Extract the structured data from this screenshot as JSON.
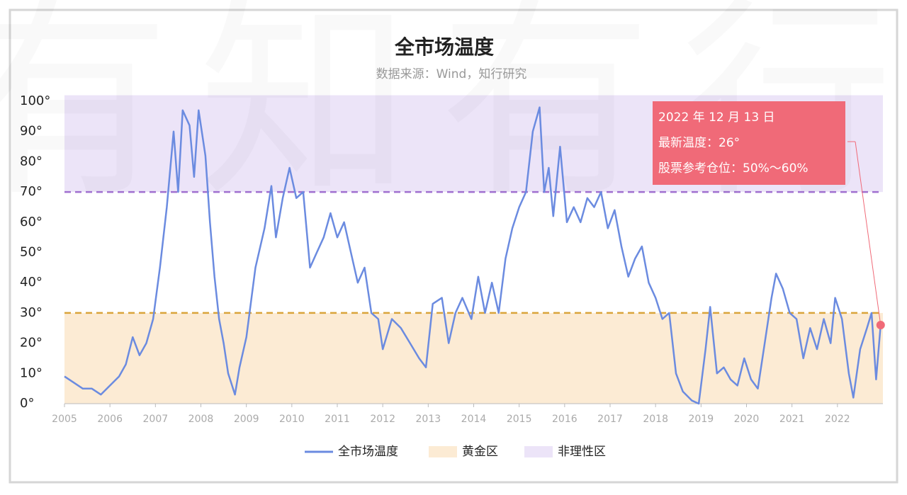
{
  "chart_data": {
    "type": "line",
    "title": "全市场温度",
    "subtitle": "数据来源：Wind，知行研究",
    "watermark": "有知有行",
    "x": [
      2005.0,
      2005.2,
      2005.4,
      2005.6,
      2005.8,
      2006.0,
      2006.2,
      2006.35,
      2006.5,
      2006.65,
      2006.8,
      2006.95,
      2007.1,
      2007.25,
      2007.4,
      2007.5,
      2007.6,
      2007.75,
      2007.85,
      2007.95,
      2008.1,
      2008.2,
      2008.3,
      2008.4,
      2008.5,
      2008.6,
      2008.75,
      2008.85,
      2009.0,
      2009.2,
      2009.4,
      2009.55,
      2009.65,
      2009.8,
      2009.95,
      2010.1,
      2010.25,
      2010.4,
      2010.55,
      2010.7,
      2010.85,
      2011.0,
      2011.15,
      2011.3,
      2011.45,
      2011.6,
      2011.75,
      2011.9,
      2012.0,
      2012.2,
      2012.4,
      2012.6,
      2012.8,
      2012.95,
      2013.1,
      2013.3,
      2013.45,
      2013.6,
      2013.75,
      2013.95,
      2014.1,
      2014.25,
      2014.4,
      2014.55,
      2014.7,
      2014.85,
      2015.0,
      2015.15,
      2015.3,
      2015.45,
      2015.55,
      2015.65,
      2015.75,
      2015.9,
      2016.05,
      2016.2,
      2016.35,
      2016.5,
      2016.65,
      2016.8,
      2016.95,
      2017.1,
      2017.25,
      2017.4,
      2017.55,
      2017.7,
      2017.85,
      2018.0,
      2018.15,
      2018.3,
      2018.45,
      2018.6,
      2018.8,
      2018.95,
      2019.1,
      2019.2,
      2019.35,
      2019.5,
      2019.65,
      2019.8,
      2019.95,
      2020.1,
      2020.25,
      2020.4,
      2020.55,
      2020.65,
      2020.8,
      2020.95,
      2021.1,
      2021.25,
      2021.4,
      2021.55,
      2021.7,
      2021.85,
      2021.95,
      2022.1,
      2022.25,
      2022.35,
      2022.5,
      2022.65,
      2022.75,
      2022.85,
      2022.95
    ],
    "series": [
      {
        "name": "全市场温度",
        "color": "#6b8be0",
        "values": [
          9,
          7,
          5,
          5,
          3,
          6,
          9,
          13,
          22,
          16,
          20,
          28,
          45,
          65,
          90,
          70,
          97,
          92,
          75,
          97,
          82,
          60,
          42,
          28,
          20,
          10,
          3,
          12,
          22,
          45,
          58,
          72,
          55,
          68,
          78,
          68,
          70,
          45,
          50,
          55,
          63,
          55,
          60,
          50,
          40,
          45,
          30,
          28,
          18,
          28,
          25,
          20,
          15,
          12,
          33,
          35,
          20,
          30,
          35,
          28,
          42,
          30,
          40,
          30,
          48,
          58,
          65,
          70,
          90,
          98,
          70,
          78,
          62,
          85,
          60,
          65,
          60,
          68,
          65,
          70,
          58,
          64,
          52,
          42,
          48,
          52,
          40,
          35,
          28,
          30,
          10,
          4,
          1,
          0,
          18,
          32,
          10,
          12,
          8,
          6,
          15,
          8,
          5,
          20,
          35,
          43,
          38,
          30,
          28,
          15,
          25,
          18,
          28,
          20,
          35,
          28,
          10,
          2,
          18,
          25,
          30,
          8,
          26
        ]
      }
    ],
    "bands": [
      {
        "name": "黄金区",
        "range": [
          0,
          30
        ],
        "color": "#fcebd4",
        "line": "#d9a43a"
      },
      {
        "name": "非理性区",
        "range": [
          70,
          102
        ],
        "color": "#ece4f8",
        "line": "#a070d0"
      }
    ],
    "xlim": [
      2005,
      2023
    ],
    "xticks": [
      2005,
      2006,
      2007,
      2008,
      2009,
      2010,
      2011,
      2012,
      2013,
      2014,
      2015,
      2016,
      2017,
      2018,
      2019,
      2020,
      2021,
      2022
    ],
    "ylim": [
      0,
      102
    ],
    "yticks": [
      {
        "value": 0,
        "label": "0°"
      },
      {
        "value": 10,
        "label": "10°"
      },
      {
        "value": 20,
        "label": "20°"
      },
      {
        "value": 30,
        "label": "30°"
      },
      {
        "value": 40,
        "label": "40°"
      },
      {
        "value": 50,
        "label": "50°"
      },
      {
        "value": 60,
        "label": "60°"
      },
      {
        "value": 70,
        "label": "70°"
      },
      {
        "value": 80,
        "label": "80°"
      },
      {
        "value": 90,
        "label": "90°"
      },
      {
        "value": 100,
        "label": "100°"
      }
    ],
    "annotation": [
      "2022 年 12 月 13 日",
      "最新温度：26°",
      "股票参考仓位：50%～60%"
    ],
    "annotation_color": "#f06a78"
  }
}
